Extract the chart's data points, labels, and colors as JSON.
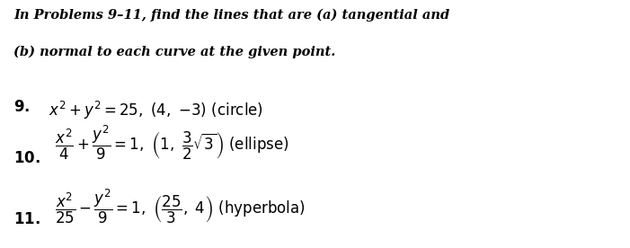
{
  "bg_color": "#ffffff",
  "figsize": [
    7.01,
    2.76
  ],
  "dpi": 100,
  "header_line1": "In Problems 9–11, find the lines that are (a) tangential and",
  "header_line2": "(b) normal to each curve at the given point.",
  "problem9_num": "9.",
  "problem9_eq": "$x^2 + y^2 = 25,$",
  "problem9_pt": "$(4, -3)$",
  "problem9_type": "(circle)",
  "problem10_num": "10.",
  "problem11_num": "11."
}
